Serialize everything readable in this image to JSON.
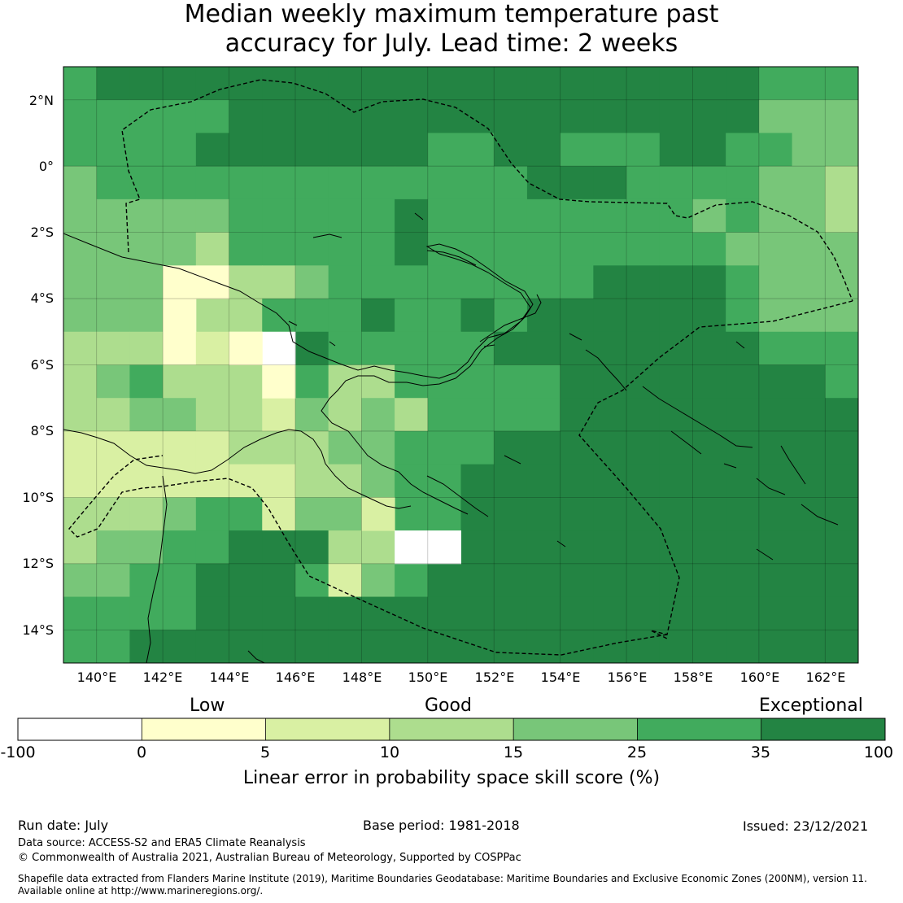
{
  "title": {
    "line1": "Median weekly maximum temperature past",
    "line2": "accuracy for July. Lead time: 2 weeks"
  },
  "map": {
    "lon_range": [
      139,
      163
    ],
    "lat_range": [
      -15,
      3
    ],
    "lat_ticks": [
      "2°N",
      "0°",
      "2°S",
      "4°S",
      "6°S",
      "8°S",
      "10°S",
      "12°S",
      "14°S"
    ],
    "lon_ticks": [
      "140°E",
      "142°E",
      "144°E",
      "146°E",
      "148°E",
      "150°E",
      "152°E",
      "154°E",
      "156°E",
      "158°E",
      "160°E",
      "162°E"
    ],
    "grid": true,
    "boundary_style": "dashed",
    "coastline_color": "#000000"
  },
  "colorbar": {
    "categories": [
      "Low",
      "Good",
      "Exceptional"
    ],
    "tick_labels": [
      "-100",
      "0",
      "5",
      "10",
      "15",
      "25",
      "35",
      "100"
    ],
    "colors": [
      "#ffffff",
      "#ffffcc",
      "#d9f0a3",
      "#addd8e",
      "#78c679",
      "#41ab5d",
      "#238443"
    ],
    "label": "Linear error in probability space skill score (%)"
  },
  "footer": {
    "run_date": "Run date: July",
    "base_period": "Base period: 1981-2018",
    "issued": "Issued: 23/12/2021",
    "data_source": "Data source: ACCESS-S2 and ERA5 Climate Reanalysis",
    "copyright": "© Commonwealth of Australia 2021, Australian Bureau of Meteorology, Supported by COSPPac",
    "shapefile_line1": "Shapefile data extracted from Flanders Marine Institute (2019), Maritime Boundaries Geodatabase: Maritime Boundaries and Exclusive Economic Zones (200NM), version 11.",
    "shapefile_line2": "Available online at http://www.marineregions.org/."
  }
}
